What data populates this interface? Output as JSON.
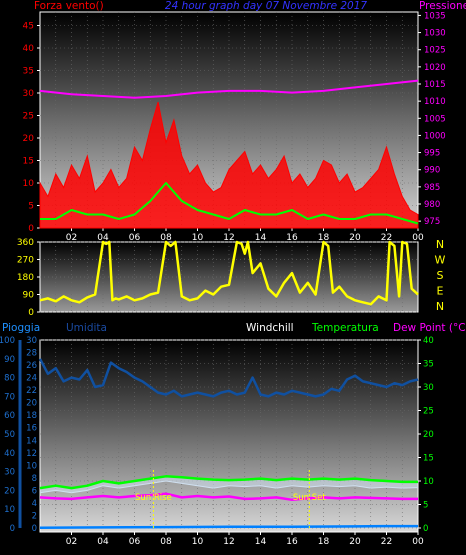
{
  "chart_data": [
    {
      "type": "line",
      "title": "24 hour graph day 07 Novembre 2017",
      "left_axis_label": "Forza vento()",
      "right_axis_label": "Pressione",
      "x_ticks": [
        "02",
        "04",
        "06",
        "08",
        "10",
        "12",
        "14",
        "16",
        "18",
        "20",
        "22",
        "00"
      ],
      "left_ticks": [
        0,
        5,
        10,
        15,
        20,
        25,
        30,
        35,
        40,
        45
      ],
      "right_ticks": [
        975,
        980,
        985,
        990,
        995,
        1000,
        1005,
        1010,
        1015,
        1020,
        1025,
        1030,
        1035
      ],
      "ylim_left": [
        0,
        48
      ],
      "ylim_right": [
        973,
        1036
      ],
      "colors": {
        "gust": "#ff0000",
        "avg": "#00ff00",
        "pressure": "#ff00ff"
      },
      "series": [
        {
          "name": "",
          "role": "gust",
          "x": [
            0,
            0.5,
            1,
            1.5,
            2,
            2.5,
            3,
            3.5,
            4,
            4.5,
            5,
            5.5,
            6,
            6.5,
            7,
            7.5,
            8,
            8.5,
            9,
            9.5,
            10,
            10.5,
            11,
            11.5,
            12,
            12.5,
            13,
            13.5,
            14,
            14.5,
            15,
            15.5,
            16,
            16.5,
            17,
            17.5,
            18,
            18.5,
            19,
            19.5,
            20,
            20.5,
            21,
            21.5,
            22,
            22.5,
            23,
            23.5,
            24
          ],
          "values": [
            10,
            7,
            12,
            9,
            14,
            11,
            16,
            8,
            10,
            13,
            9,
            11,
            18,
            15,
            22,
            28,
            19,
            24,
            16,
            12,
            14,
            10,
            8,
            9,
            13,
            15,
            17,
            12,
            14,
            11,
            13,
            16,
            10,
            12,
            9,
            11,
            15,
            14,
            10,
            12,
            8,
            9,
            11,
            13,
            18,
            12,
            7,
            4,
            3
          ]
        },
        {
          "name": "",
          "role": "avg",
          "x": [
            0,
            1,
            2,
            3,
            4,
            5,
            6,
            7,
            7.5,
            8,
            8.5,
            9,
            10,
            11,
            12,
            13,
            14,
            15,
            16,
            17,
            18,
            19,
            20,
            21,
            22,
            23,
            24
          ],
          "values": [
            2,
            2,
            4,
            3,
            3,
            2,
            3,
            6,
            8,
            10,
            8,
            6,
            4,
            3,
            2,
            4,
            3,
            3,
            4,
            2,
            3,
            2,
            2,
            3,
            3,
            2,
            1
          ]
        },
        {
          "name": "",
          "role": "pressure",
          "x": [
            0,
            2,
            4,
            6,
            8,
            10,
            12,
            14,
            16,
            18,
            20,
            22,
            24
          ],
          "values": [
            1013,
            1012,
            1011.5,
            1011,
            1011.5,
            1012.5,
            1013,
            1013,
            1012.5,
            1013,
            1014,
            1015,
            1016
          ]
        }
      ]
    },
    {
      "type": "line",
      "title": "",
      "x_ticks": [
        "02",
        "04",
        "06",
        "08",
        "10",
        "12",
        "14",
        "16",
        "18",
        "20",
        "22",
        "00"
      ],
      "y_ticks": [
        0,
        90,
        180,
        270,
        360
      ],
      "compass_labels": [
        "N",
        "W",
        "S",
        "E",
        "N"
      ],
      "ylim": [
        0,
        360
      ],
      "color": "#ffff00",
      "series": [
        {
          "name": "",
          "x": [
            0,
            0.5,
            1,
            1.5,
            2,
            2.5,
            3,
            3.5,
            4,
            4.2,
            4.4,
            4.6,
            4.8,
            5,
            5.5,
            6,
            6.5,
            7,
            7.5,
            8,
            8.3,
            8.6,
            9,
            9.5,
            10,
            10.5,
            11,
            11.5,
            12,
            12.5,
            12.8,
            13,
            13.2,
            13.5,
            14,
            14.5,
            15,
            15.5,
            16,
            16.5,
            17,
            17.5,
            18,
            18.3,
            18.6,
            19,
            19.5,
            20,
            20.5,
            21,
            21.5,
            22,
            22.2,
            22.5,
            22.8,
            23,
            23.3,
            23.6,
            24
          ],
          "values": [
            60,
            70,
            55,
            80,
            60,
            50,
            75,
            90,
            360,
            350,
            360,
            60,
            70,
            65,
            80,
            60,
            70,
            90,
            100,
            360,
            340,
            360,
            80,
            60,
            70,
            110,
            90,
            130,
            140,
            360,
            350,
            300,
            360,
            200,
            250,
            120,
            80,
            150,
            200,
            100,
            150,
            90,
            360,
            340,
            100,
            130,
            80,
            60,
            50,
            40,
            80,
            60,
            360,
            340,
            80,
            360,
            350,
            120,
            90
          ]
        }
      ]
    },
    {
      "type": "line",
      "labels": {
        "rain": "Pioggia",
        "humidity": "Umidita",
        "windchill": "Windchill",
        "temperature": "Temperatura",
        "dewpoint": "Dew Point (°C)"
      },
      "x_ticks": [
        "02",
        "04",
        "06",
        "08",
        "10",
        "12",
        "14",
        "16",
        "18",
        "20",
        "22",
        "00"
      ],
      "rain_ticks": [
        0,
        2,
        4,
        6,
        8,
        10,
        12,
        14,
        16,
        18,
        20,
        22,
        24,
        26,
        28,
        30
      ],
      "humidity_ticks": [
        0,
        10,
        20,
        30,
        40,
        50,
        60,
        70,
        80,
        90,
        100
      ],
      "temp_ticks": [
        0,
        5,
        10,
        15,
        20,
        25,
        30,
        35,
        40
      ],
      "ylim_rain": [
        0,
        30
      ],
      "ylim_humidity": [
        0,
        100
      ],
      "ylim_temp": [
        0,
        40
      ],
      "annotations": [
        {
          "text": "Sun Rise",
          "x": 7.2
        },
        {
          "text": "Sun Set",
          "x": 17.1
        }
      ],
      "colors": {
        "humidity": "#1050a0",
        "temperature": "#00ff00",
        "windchill": "#d0e0f0",
        "dewpoint": "#ff00ff",
        "rain": "#0080ff"
      },
      "series": [
        {
          "name": "Umidita",
          "role": "humidity",
          "x": [
            0,
            0.5,
            1,
            1.5,
            2,
            2.5,
            3,
            3.5,
            4,
            4.5,
            5,
            5.5,
            6,
            6.5,
            7,
            7.5,
            8,
            8.5,
            9,
            9.5,
            10,
            10.5,
            11,
            11.5,
            12,
            12.5,
            13,
            13.5,
            14,
            14.5,
            15,
            15.5,
            16,
            16.5,
            17,
            17.5,
            18,
            18.5,
            19,
            19.5,
            20,
            20.5,
            21,
            21.5,
            22,
            22.5,
            23,
            23.5,
            24
          ],
          "values": [
            90,
            82,
            85,
            78,
            80,
            79,
            84,
            75,
            76,
            88,
            85,
            83,
            80,
            78,
            75,
            72,
            71,
            73,
            70,
            71,
            72,
            71,
            70,
            72,
            73,
            71,
            72,
            80,
            71,
            70,
            72,
            71,
            73,
            72,
            71,
            70,
            71,
            74,
            73,
            79,
            81,
            78,
            77,
            76,
            75,
            77,
            76,
            78,
            79
          ]
        },
        {
          "name": "Temperatura",
          "role": "temperature",
          "x": [
            0,
            1,
            2,
            3,
            4,
            5,
            6,
            7,
            8,
            9,
            10,
            11,
            12,
            13,
            14,
            15,
            16,
            17,
            18,
            19,
            20,
            21,
            22,
            23,
            24
          ],
          "values": [
            8.5,
            9,
            8.5,
            9,
            10,
            9.5,
            10,
            10.5,
            11,
            10.8,
            10.5,
            10.3,
            10.2,
            10.3,
            10.5,
            10.2,
            10.5,
            10.3,
            10.5,
            10.3,
            10.5,
            10.2,
            10,
            9.8,
            9.8
          ]
        },
        {
          "name": "Windchill",
          "role": "windchill",
          "x": [
            0,
            1,
            2,
            3,
            4,
            5,
            6,
            7,
            8,
            9,
            10,
            11,
            12,
            13,
            14,
            15,
            16,
            17,
            18,
            19,
            20,
            21,
            22,
            23,
            24
          ],
          "values": [
            7.5,
            8,
            7.5,
            8,
            9,
            8.5,
            9,
            9.5,
            10,
            9.5,
            9,
            8.5,
            9,
            8.8,
            9,
            8.5,
            9,
            8.7,
            9,
            8.8,
            9,
            8.5,
            8.7,
            8.5,
            8.6
          ]
        },
        {
          "name": "Dew Point (°C)",
          "role": "dewpoint",
          "x": [
            0,
            1,
            2,
            3,
            4,
            5,
            6,
            7,
            8,
            9,
            10,
            11,
            12,
            13,
            14,
            15,
            16,
            17,
            18,
            19,
            20,
            21,
            22,
            23,
            24
          ],
          "values": [
            6.5,
            6.3,
            6.2,
            6.5,
            6.8,
            6.5,
            6.8,
            7,
            7.3,
            6.5,
            6.8,
            6.5,
            6.7,
            6.2,
            6.3,
            6.5,
            6,
            6.3,
            6.5,
            6.3,
            6.5,
            6.4,
            6.3,
            6.2,
            6.2
          ]
        },
        {
          "name": "Pioggia",
          "role": "rain",
          "x": [
            0,
            4,
            8,
            12,
            16,
            20,
            22,
            23,
            24
          ],
          "values": [
            0.05,
            0.1,
            0.15,
            0.2,
            0.2,
            0.25,
            0.3,
            0.3,
            0.3
          ]
        }
      ]
    }
  ]
}
